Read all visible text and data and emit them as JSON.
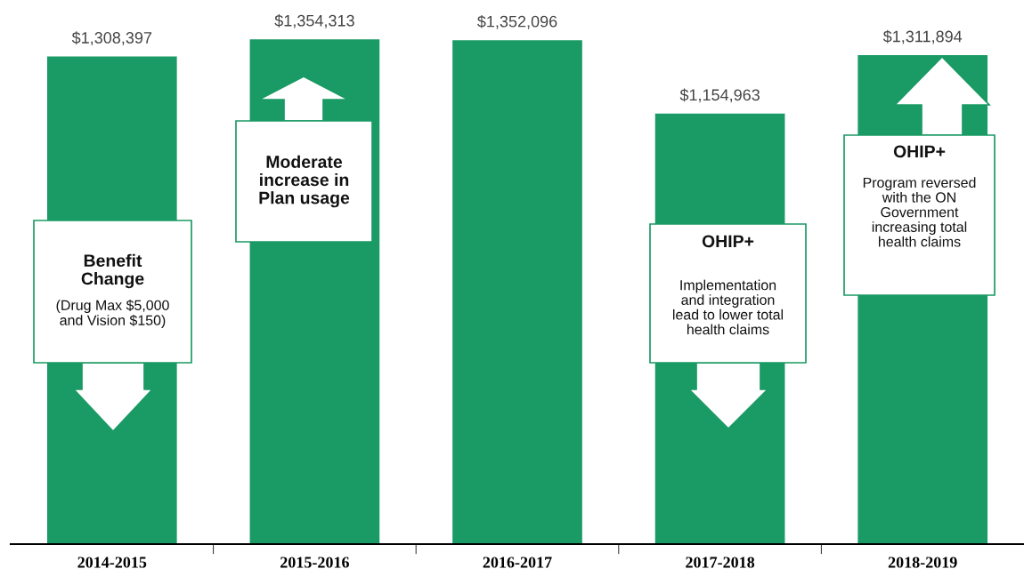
{
  "chart_data": {
    "type": "bar",
    "categories": [
      "2014-2015",
      "2015-2016",
      "2016-2017",
      "2017-2018",
      "2018-2019"
    ],
    "values": [
      1308397,
      1354313,
      1352096,
      1154963,
      1311894
    ],
    "value_labels": [
      "$1,308,397",
      "$1,354,313",
      "$1,352,096",
      "$1,154,963",
      "$1,311,894"
    ],
    "color": "#1a9a64",
    "tick_labels": "x",
    "grid": false,
    "annotations": [
      "Benefit\nChange",
      "(Drug Max $5,000\nand Vision $150)",
      "Moderate\nincrease in\nPlan usage",
      "OHIP+",
      "Implementation\nand integration\nlead to lower total\nhealth claims",
      "OHIP+",
      "Program reversed\nwith the ON\nGovernment\nincreasing total\nhealth claims"
    ]
  }
}
